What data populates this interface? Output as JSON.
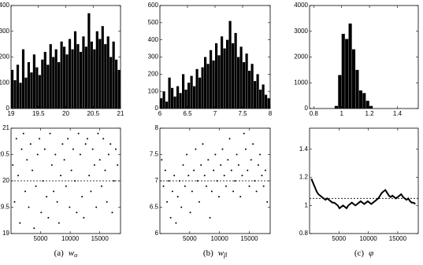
{
  "chart_data": [
    {
      "type": "histogram",
      "xlim": [
        19,
        21
      ],
      "xticks": [
        19,
        19.5,
        20,
        20.5,
        21
      ],
      "ylim": [
        0,
        400
      ],
      "yticks": [
        0,
        100,
        200,
        300,
        400
      ],
      "color": "#000000",
      "bins": [
        19,
        19.05,
        19.1,
        19.15,
        19.2,
        19.25,
        19.3,
        19.35,
        19.4,
        19.45,
        19.5,
        19.55,
        19.6,
        19.65,
        19.7,
        19.75,
        19.8,
        19.85,
        19.9,
        19.95,
        20,
        20.05,
        20.1,
        20.15,
        20.2,
        20.25,
        20.3,
        20.35,
        20.4,
        20.45,
        20.5,
        20.55,
        20.6,
        20.65,
        20.7,
        20.75,
        20.8,
        20.85,
        20.9,
        20.95,
        21
      ],
      "values": [
        150,
        110,
        170,
        100,
        230,
        120,
        180,
        140,
        210,
        160,
        130,
        190,
        220,
        170,
        250,
        200,
        230,
        180,
        260,
        240,
        210,
        270,
        230,
        300,
        250,
        220,
        280,
        240,
        370,
        260,
        230,
        300,
        270,
        320,
        250,
        280,
        200,
        260,
        190,
        150
      ]
    },
    {
      "type": "histogram",
      "xlim": [
        6,
        8
      ],
      "xticks": [
        6,
        6.5,
        7,
        7.5,
        8
      ],
      "ylim": [
        0,
        600
      ],
      "yticks": [
        0,
        100,
        200,
        300,
        400,
        500,
        600
      ],
      "color": "#000000",
      "bins": [
        6,
        6.05,
        6.1,
        6.15,
        6.2,
        6.25,
        6.3,
        6.35,
        6.4,
        6.45,
        6.5,
        6.55,
        6.6,
        6.65,
        6.7,
        6.75,
        6.8,
        6.85,
        6.9,
        6.95,
        7,
        7.05,
        7.1,
        7.15,
        7.2,
        7.25,
        7.3,
        7.35,
        7.4,
        7.45,
        7.5,
        7.55,
        7.6,
        7.65,
        7.7,
        7.75,
        7.8,
        7.85,
        7.9,
        7.95,
        8
      ],
      "values": [
        60,
        100,
        40,
        180,
        120,
        70,
        130,
        90,
        200,
        110,
        150,
        190,
        130,
        230,
        180,
        240,
        300,
        260,
        340,
        280,
        380,
        310,
        420,
        350,
        400,
        510,
        380,
        440,
        300,
        360,
        270,
        320,
        220,
        260,
        160,
        200,
        110,
        140,
        80,
        60
      ]
    },
    {
      "type": "histogram",
      "xlim": [
        0.77,
        1.55
      ],
      "xticks": [
        0.8,
        1,
        1.2,
        1.4
      ],
      "ylim": [
        0,
        4000
      ],
      "yticks": [
        0,
        1000,
        2000,
        3000,
        4000
      ],
      "color": "#000000",
      "bins": [
        0.95,
        0.975,
        1,
        1.025,
        1.05,
        1.075,
        1.1,
        1.125,
        1.15,
        1.175,
        1.2,
        1.225
      ],
      "values": [
        100,
        1300,
        2900,
        2700,
        3300,
        2300,
        1500,
        700,
        600,
        300,
        100
      ]
    },
    {
      "type": "scatter",
      "xlim": [
        0,
        18500
      ],
      "xticks": [
        5000,
        10000,
        15000
      ],
      "ylim": [
        19,
        21
      ],
      "yticks": [
        19,
        19.5,
        20,
        20.5,
        21
      ],
      "reference_line": 20,
      "color": "#000000",
      "caption": {
        "label": "(a)",
        "symbol": "w",
        "subscript": "α"
      },
      "x": [
        300,
        600,
        900,
        1200,
        1500,
        1800,
        2100,
        2400,
        2700,
        3000,
        3300,
        3600,
        3900,
        4200,
        4500,
        4800,
        5100,
        5400,
        5700,
        6000,
        6300,
        6600,
        6900,
        7200,
        7500,
        7800,
        8100,
        8400,
        8700,
        9000,
        9300,
        9600,
        9900,
        10200,
        10500,
        10800,
        11100,
        11400,
        11700,
        12000,
        12300,
        12600,
        12900,
        13200,
        13500,
        13800,
        14100,
        14400,
        14700,
        15000,
        15300,
        15600,
        15900,
        16200,
        16500,
        16800,
        17100,
        17400,
        17700,
        18000
      ],
      "values": [
        20.3,
        19.6,
        20.8,
        20.1,
        19.2,
        20.6,
        20.9,
        19.8,
        20.4,
        19.5,
        20.7,
        20.2,
        19.1,
        19.9,
        20.5,
        20.8,
        19.4,
        20.0,
        20.6,
        19.7,
        19.3,
        20.9,
        20.3,
        19.8,
        20.5,
        19.6,
        19.2,
        20.1,
        20.7,
        20.4,
        19.9,
        20.8,
        19.5,
        20.2,
        20.6,
        20.0,
        19.4,
        20.9,
        20.5,
        19.7,
        19.3,
        20.7,
        20.8,
        20.1,
        19.8,
        20.6,
        20.3,
        19.5,
        20.9,
        20.4,
        19.9,
        20.8,
        20.2,
        19.6,
        20.5,
        20.7,
        19.4,
        20.0,
        20.6,
        20.3
      ]
    },
    {
      "type": "scatter",
      "xlim": [
        0,
        18500
      ],
      "xticks": [
        5000,
        10000,
        15000
      ],
      "ylim": [
        6,
        8
      ],
      "yticks": [
        6,
        6.5,
        7,
        7.5,
        8
      ],
      "reference_line": 7,
      "color": "#000000",
      "caption": {
        "label": "(b)",
        "symbol": "w",
        "subscript": "β"
      },
      "x": [
        300,
        600,
        900,
        1200,
        1500,
        1800,
        2100,
        2400,
        2700,
        3000,
        3300,
        3600,
        3900,
        4200,
        4500,
        4800,
        5100,
        5400,
        5700,
        6000,
        6300,
        6600,
        6900,
        7200,
        7500,
        7800,
        8100,
        8400,
        8700,
        9000,
        9300,
        9600,
        9900,
        10200,
        10500,
        10800,
        11100,
        11400,
        11700,
        12000,
        12300,
        12600,
        12900,
        13200,
        13500,
        13800,
        14100,
        14400,
        14700,
        15000,
        15300,
        15600,
        15900,
        16200,
        16500,
        16800,
        17100,
        17400,
        17700,
        18000
      ],
      "values": [
        7.4,
        6.9,
        7.2,
        6.6,
        7.0,
        6.3,
        6.8,
        7.1,
        6.2,
        6.7,
        7.0,
        6.5,
        7.3,
        6.9,
        7.5,
        7.1,
        6.4,
        6.8,
        7.2,
        7.6,
        7.0,
        6.6,
        7.3,
        7.7,
        7.1,
        6.9,
        7.4,
        6.3,
        6.8,
        7.2,
        7.5,
        7.0,
        6.7,
        7.3,
        7.6,
        7.1,
        6.9,
        7.4,
        7.8,
        7.2,
        6.8,
        7.0,
        7.5,
        7.3,
        6.7,
        7.1,
        7.9,
        7.6,
        7.2,
        6.9,
        7.4,
        7.7,
        7.0,
        6.8,
        7.3,
        7.5,
        7.1,
        6.9,
        7.2,
        6.6
      ]
    },
    {
      "type": "line",
      "xlim": [
        0,
        18500
      ],
      "xticks": [
        5000,
        10000,
        15000
      ],
      "ylim": [
        0.8,
        1.55
      ],
      "yticks": [
        0.8,
        1,
        1.2,
        1.4
      ],
      "reference_line": 1.05,
      "color": "#000000",
      "caption": {
        "label": "(c)",
        "symbol": "φ"
      },
      "x": [
        300,
        600,
        900,
        1200,
        1500,
        1800,
        2100,
        2400,
        2700,
        3000,
        3300,
        3600,
        3900,
        4200,
        4500,
        4800,
        5100,
        5400,
        5700,
        6000,
        6300,
        6600,
        6900,
        7200,
        7500,
        7800,
        8100,
        8400,
        8700,
        9000,
        9300,
        9600,
        9900,
        10200,
        10500,
        10800,
        11100,
        11400,
        11700,
        12000,
        12300,
        12600,
        12900,
        13200,
        13500,
        13800,
        14100,
        14400,
        14700,
        15000,
        15300,
        15600,
        15900,
        16200,
        16500,
        16800,
        17100,
        17400,
        17700,
        18000
      ],
      "values": [
        1.19,
        1.16,
        1.13,
        1.1,
        1.08,
        1.07,
        1.06,
        1.05,
        1.04,
        1.05,
        1.04,
        1.03,
        1.02,
        1.02,
        1.01,
        1.0,
        0.98,
        0.99,
        1.0,
        0.99,
        0.98,
        1.0,
        1.01,
        1.02,
        1.01,
        1.0,
        1.01,
        1.02,
        1.03,
        1.02,
        1.01,
        1.02,
        1.03,
        1.02,
        1.01,
        1.02,
        1.03,
        1.04,
        1.05,
        1.07,
        1.09,
        1.1,
        1.11,
        1.09,
        1.07,
        1.06,
        1.07,
        1.06,
        1.05,
        1.06,
        1.07,
        1.08,
        1.06,
        1.05,
        1.04,
        1.05,
        1.03,
        1.02,
        1.02,
        1.01
      ]
    }
  ]
}
